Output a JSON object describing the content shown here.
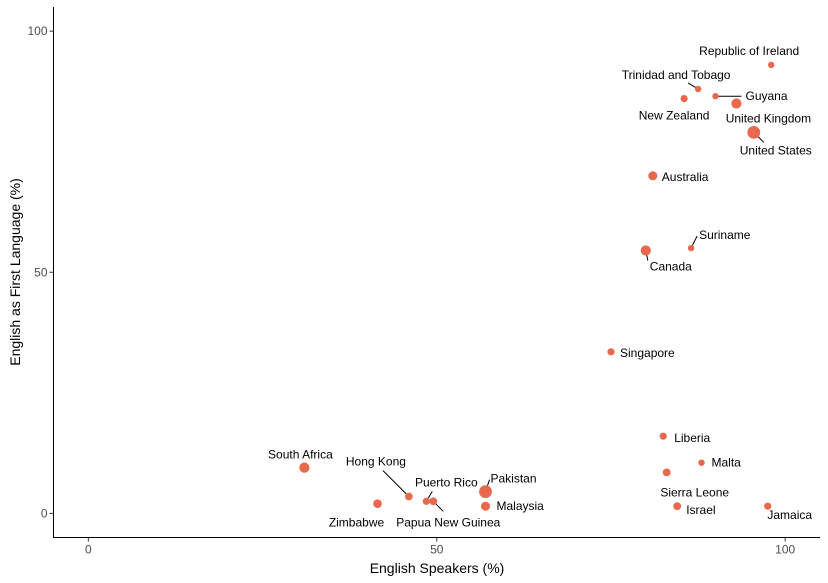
{
  "chart_data": {
    "type": "scatter",
    "title": "",
    "xlabel": "English Speakers (%)",
    "ylabel": "English as First Language (%)",
    "xlim": [
      -5,
      105
    ],
    "ylim": [
      -5,
      105
    ],
    "x_ticks": [
      0,
      50,
      100
    ],
    "y_ticks": [
      0,
      50,
      100
    ],
    "grid": false,
    "legend": "none",
    "point_color": "#E8694D",
    "points": [
      {
        "label": "Republic of Ireland",
        "x": 98,
        "y": 93,
        "size": 1
      },
      {
        "label": "Trinidad and Tobago",
        "x": 87.5,
        "y": 88,
        "size": 1
      },
      {
        "label": "Guyana",
        "x": 90,
        "y": 86.5,
        "size": 1
      },
      {
        "label": "New Zealand",
        "x": 85.5,
        "y": 86,
        "size": 1.3
      },
      {
        "label": "United Kingdom",
        "x": 93,
        "y": 85,
        "size": 2.5
      },
      {
        "label": "United States",
        "x": 95.5,
        "y": 79,
        "size": 4
      },
      {
        "label": "Australia",
        "x": 81,
        "y": 70,
        "size": 2
      },
      {
        "label": "Suriname",
        "x": 86.5,
        "y": 55,
        "size": 1
      },
      {
        "label": "Canada",
        "x": 80,
        "y": 54.5,
        "size": 2.5
      },
      {
        "label": "Singapore",
        "x": 75,
        "y": 33.5,
        "size": 1.3
      },
      {
        "label": "Liberia",
        "x": 82.5,
        "y": 16,
        "size": 1.3
      },
      {
        "label": "Malta",
        "x": 88,
        "y": 10.5,
        "size": 1
      },
      {
        "label": "Sierra Leone",
        "x": 83,
        "y": 8.5,
        "size": 1.5
      },
      {
        "label": "Israel",
        "x": 84.5,
        "y": 1.5,
        "size": 1.5
      },
      {
        "label": "Jamaica",
        "x": 97.5,
        "y": 1.5,
        "size": 1.3
      },
      {
        "label": "South Africa",
        "x": 31,
        "y": 9.5,
        "size": 2.5
      },
      {
        "label": "Hong Kong",
        "x": 46,
        "y": 3.5,
        "size": 1.5
      },
      {
        "label": "Puerto Rico",
        "x": 48.5,
        "y": 2.5,
        "size": 1.3
      },
      {
        "label": "Papua New Guinea",
        "x": 49.5,
        "y": 2.5,
        "size": 1.5
      },
      {
        "label": "Zimbabwe",
        "x": 41.5,
        "y": 2,
        "size": 1.8
      },
      {
        "label": "Pakistan",
        "x": 57,
        "y": 4.5,
        "size": 4
      },
      {
        "label": "Malaysia",
        "x": 57,
        "y": 1.5,
        "size": 2
      }
    ]
  }
}
